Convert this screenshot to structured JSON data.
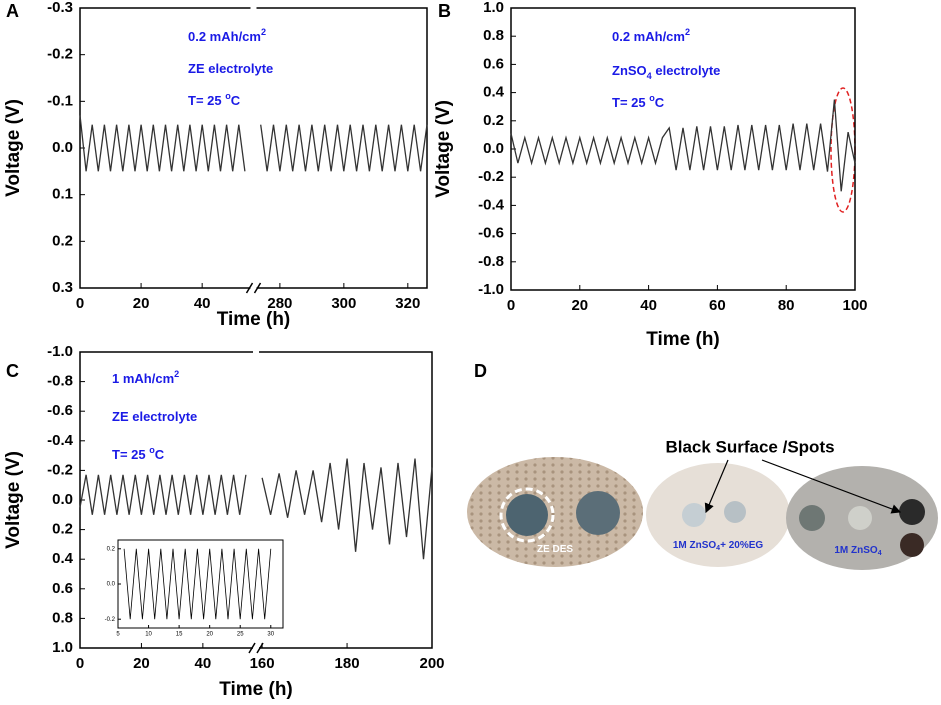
{
  "chart_data": [
    {
      "type": "line",
      "label": "A",
      "xlabel": "Time (h)",
      "ylabel": "Voltage (V)",
      "ylim": [
        -0.3,
        0.3
      ],
      "y_inverted": true,
      "yticks": [
        -0.3,
        -0.2,
        -0.1,
        {
          "value": 0,
          "label": "0.0"
        },
        0.1,
        0.2,
        0.3
      ],
      "x_segments": [
        {
          "xlim": [
            0,
            55.5
          ],
          "xticks": [
            0,
            20,
            40
          ]
        },
        {
          "xlim": [
            273,
            326
          ],
          "xticks": [
            280,
            300,
            320
          ]
        }
      ],
      "annotations": [
        [
          {
            "text": "0.2 mAh/cm"
          },
          {
            "text": "2",
            "shift": "sup"
          }
        ],
        [
          {
            "text": "ZE electrolyte"
          }
        ],
        [
          {
            "text": "T= 25 "
          },
          {
            "text": "o",
            "shift": "sup"
          },
          {
            "text": "C"
          }
        ]
      ],
      "series": [
        {
          "color": "#333333",
          "x": [
            0,
            2,
            4,
            6,
            8,
            10,
            12,
            14,
            16,
            18,
            20,
            22,
            24,
            26,
            28,
            30,
            32,
            34,
            36,
            38,
            40,
            42,
            44,
            46,
            48,
            50,
            52,
            54
          ],
          "values": [
            -0.07,
            0.05,
            -0.05,
            0.05,
            -0.05,
            0.05,
            -0.05,
            0.05,
            -0.05,
            0.05,
            -0.05,
            0.05,
            -0.05,
            0.05,
            -0.05,
            0.05,
            -0.05,
            0.05,
            -0.05,
            0.05,
            -0.05,
            0.05,
            -0.05,
            0.05,
            -0.05,
            0.05,
            -0.05,
            0.05
          ]
        },
        {
          "color": "#333333",
          "x": [
            274,
            276,
            278,
            280,
            282,
            284,
            286,
            288,
            290,
            292,
            294,
            296,
            298,
            300,
            302,
            304,
            306,
            308,
            310,
            312,
            314,
            316,
            318,
            320,
            322,
            324,
            326
          ],
          "values": [
            -0.05,
            0.05,
            -0.05,
            0.05,
            -0.05,
            0.05,
            -0.05,
            0.05,
            -0.05,
            0.05,
            -0.05,
            0.05,
            -0.05,
            0.05,
            -0.05,
            0.05,
            -0.05,
            0.05,
            -0.05,
            0.05,
            -0.05,
            0.05,
            -0.05,
            0.05,
            -0.05,
            0.05,
            -0.05
          ]
        }
      ]
    },
    {
      "type": "line",
      "label": "B",
      "xlabel": "Time (h)",
      "ylabel": "Voltage (V)",
      "ylim": [
        -1,
        1
      ],
      "y_inverted": false,
      "yticks": [
        {
          "value": -1,
          "label": "-1.0"
        },
        -0.8,
        -0.6,
        -0.4,
        -0.2,
        {
          "value": 0,
          "label": "0.0"
        },
        0.2,
        0.4,
        0.6,
        0.8,
        {
          "value": 1,
          "label": "1.0"
        }
      ],
      "x_segments": [
        {
          "xlim": [
            0,
            100
          ],
          "xticks": [
            0,
            20,
            40,
            60,
            80,
            100
          ]
        }
      ],
      "annotations": [
        [
          {
            "text": "0.2 mAh/cm"
          },
          {
            "text": "2",
            "shift": "sup"
          }
        ],
        [
          {
            "text": "ZnSO"
          },
          {
            "text": "4",
            "shift": "sub"
          },
          {
            "text": " electrolyte"
          }
        ],
        [
          {
            "text": "T= 25 "
          },
          {
            "text": "o",
            "shift": "sup"
          },
          {
            "text": "C"
          }
        ]
      ],
      "series": [
        {
          "color": "#333333",
          "x": [
            0,
            2,
            4,
            6,
            8,
            10,
            12,
            14,
            16,
            18,
            20,
            22,
            24,
            26,
            28,
            30,
            32,
            34,
            36,
            38,
            40,
            42,
            44,
            46,
            48,
            50,
            52,
            54,
            56,
            58,
            60,
            62,
            64,
            66,
            68,
            70,
            72,
            74,
            76,
            78,
            80,
            82,
            84,
            86,
            88,
            90,
            92,
            94,
            96,
            98,
            100
          ],
          "values": [
            0.11,
            -0.1,
            0.08,
            -0.1,
            0.08,
            -0.1,
            0.08,
            -0.1,
            0.08,
            -0.1,
            0.08,
            -0.1,
            0.08,
            -0.1,
            0.08,
            -0.1,
            0.08,
            -0.1,
            0.08,
            -0.1,
            0.08,
            -0.1,
            0.08,
            0.15,
            -0.15,
            0.15,
            -0.15,
            0.16,
            -0.15,
            0.16,
            -0.15,
            0.16,
            -0.15,
            0.17,
            -0.15,
            0.17,
            -0.15,
            0.17,
            -0.15,
            0.17,
            -0.15,
            0.18,
            -0.15,
            0.18,
            -0.15,
            0.18,
            -0.16,
            0.35,
            -0.3,
            0.12,
            -0.1
          ]
        }
      ]
    },
    {
      "type": "line",
      "label": "C",
      "xlabel": "Time (h)",
      "ylabel": "Voltage (V)",
      "ylim": [
        -1,
        1
      ],
      "y_inverted": true,
      "yticks": [
        {
          "value": -1,
          "label": "-1.0"
        },
        -0.8,
        -0.6,
        -0.4,
        -0.2,
        {
          "value": 0,
          "label": "0.0"
        },
        0.2,
        0.4,
        0.6,
        0.8,
        {
          "value": 1,
          "label": "1.0"
        }
      ],
      "x_segments": [
        {
          "xlim": [
            0,
            56
          ],
          "xticks": [
            0,
            20,
            40
          ]
        },
        {
          "xlim": [
            159.5,
            200
          ],
          "xticks": [
            160,
            180,
            200
          ]
        }
      ],
      "annotations": [
        [
          {
            "text": "1 mAh/cm"
          },
          {
            "text": "2",
            "shift": "sup"
          }
        ],
        [
          {
            "text": "ZE electrolyte"
          }
        ],
        [
          {
            "text": "T= 25 "
          },
          {
            "text": "o",
            "shift": "sup"
          },
          {
            "text": "C"
          }
        ]
      ],
      "series": [
        {
          "color": "#333333",
          "x": [
            0,
            2,
            4,
            6,
            8,
            10,
            12,
            14,
            16,
            18,
            20,
            22,
            24,
            26,
            28,
            30,
            32,
            34,
            36,
            38,
            40,
            42,
            44,
            46,
            48,
            50,
            52,
            54
          ],
          "values": [
            0.05,
            -0.17,
            0.1,
            -0.17,
            0.1,
            -0.17,
            0.1,
            -0.17,
            0.1,
            -0.17,
            0.1,
            -0.17,
            0.1,
            -0.17,
            0.1,
            -0.17,
            0.1,
            -0.17,
            0.1,
            -0.17,
            0.1,
            -0.17,
            0.1,
            -0.17,
            0.1,
            -0.17,
            0.1,
            -0.17
          ]
        },
        {
          "color": "#333333",
          "x": [
            160,
            162,
            164,
            166,
            168,
            170,
            172,
            174,
            176,
            178,
            180,
            182,
            184,
            186,
            188,
            190,
            192,
            194,
            196,
            198,
            200
          ],
          "values": [
            -0.15,
            0.1,
            -0.18,
            0.12,
            -0.2,
            0.1,
            -0.2,
            0.15,
            -0.25,
            0.2,
            -0.28,
            0.35,
            -0.25,
            0.2,
            -0.22,
            0.3,
            -0.25,
            0.25,
            -0.28,
            0.4,
            -0.22
          ]
        }
      ],
      "inset": {
        "type": "line",
        "ylim": [
          -0.25,
          0.25
        ],
        "y_inverted": false,
        "yticks": [
          -0.2,
          {
            "value": 0,
            "label": "0.0"
          },
          0.2
        ],
        "x_segments": [
          {
            "xlim": [
              5,
              32
            ],
            "xticks": [
              5,
              10,
              15,
              20,
              25,
              30
            ]
          }
        ],
        "series": [
          {
            "color": "#000000",
            "x": [
              6,
              7,
              8,
              9,
              10,
              11,
              12,
              13,
              14,
              15,
              16,
              17,
              18,
              19,
              20,
              21,
              22,
              23,
              24,
              25,
              26,
              27,
              28,
              29,
              30
            ],
            "values": [
              0.2,
              -0.2,
              0.2,
              -0.2,
              0.2,
              -0.2,
              0.2,
              -0.2,
              0.2,
              -0.2,
              0.2,
              -0.2,
              0.2,
              -0.2,
              0.2,
              -0.2,
              0.2,
              -0.2,
              0.2,
              -0.2,
              0.2,
              -0.2,
              0.2,
              -0.2,
              0.2
            ]
          }
        ]
      }
    }
  ],
  "panel_d": {
    "label": "D",
    "callout": "Black Surface /Spots",
    "captions": [
      [
        {
          "text": "ZE DES"
        }
      ],
      [
        {
          "text": "1M ZnSO"
        },
        {
          "text": "4",
          "shift": "sub"
        },
        {
          "text": "+ 20%EG"
        }
      ],
      [
        {
          "text": "1M ZnSO"
        },
        {
          "text": "4",
          "shift": "sub"
        }
      ]
    ]
  }
}
